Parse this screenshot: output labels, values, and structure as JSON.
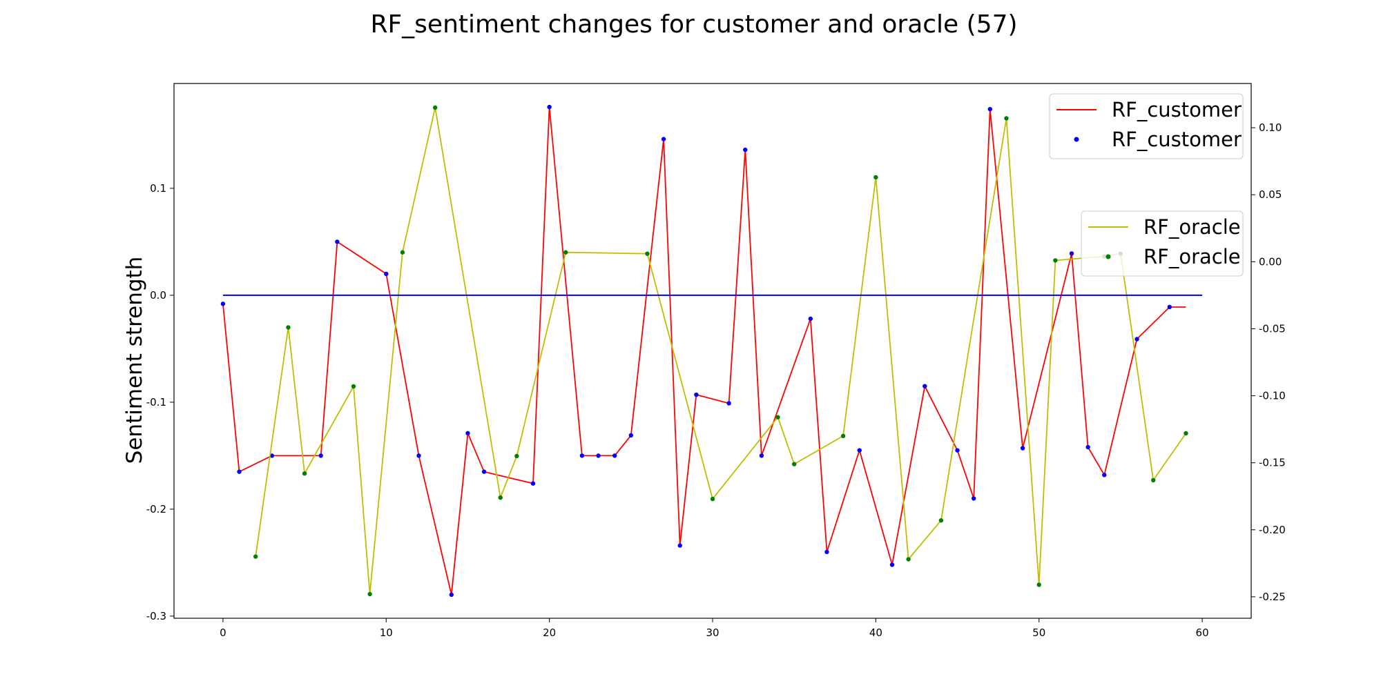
{
  "chart_data": {
    "type": "line",
    "title": "RF_sentiment changes for customer and oracle (57)",
    "ylabel": "Sentiment strength",
    "xlabel": "",
    "x_ticks": [
      0,
      10,
      20,
      30,
      40,
      50,
      60
    ],
    "xlim": [
      -3,
      63
    ],
    "left_axis": {
      "ylim": [
        -0.302,
        0.198
      ],
      "ticks": [
        -0.3,
        -0.2,
        -0.1,
        0.0,
        0.1
      ],
      "tick_labels": [
        "-0.3",
        "-0.2",
        "-0.1",
        "0.0",
        "0.1"
      ]
    },
    "right_axis": {
      "ylim": [
        -0.266,
        0.133
      ],
      "ticks": [
        -0.25,
        -0.2,
        -0.15,
        -0.1,
        -0.05,
        0.0,
        0.05,
        0.1
      ],
      "tick_labels": [
        "-0.25",
        "-0.20",
        "-0.15",
        "-0.10",
        "-0.05",
        "0.00",
        "0.05",
        "0.10"
      ]
    },
    "zero_line": {
      "x": [
        0,
        60
      ],
      "y": 0.0,
      "color": "#0000ff"
    },
    "legend_position": "upper-right",
    "series": [
      {
        "name": "RF_customer",
        "axis": "left",
        "line_color": "#ff0000",
        "marker_color": "#0000ff",
        "x": [
          0,
          1,
          3,
          6,
          7,
          10,
          12,
          14,
          15,
          16,
          19,
          20,
          22,
          23,
          24,
          25,
          27,
          28,
          29,
          31,
          32,
          33,
          36,
          37,
          39,
          41,
          43,
          45,
          46,
          47,
          49,
          52,
          53,
          54,
          56,
          58,
          59
        ],
        "y": [
          -0.008,
          -0.165,
          -0.15,
          -0.15,
          0.05,
          0.02,
          -0.15,
          -0.28,
          -0.129,
          -0.165,
          -0.176,
          0.176,
          -0.15,
          -0.15,
          -0.15,
          -0.131,
          0.146,
          -0.234,
          -0.093,
          -0.101,
          0.136,
          -0.15,
          -0.022,
          -0.24,
          -0.145,
          -0.252,
          -0.085,
          -0.145,
          -0.19,
          0.174,
          -0.143,
          0.039,
          -0.142,
          -0.168,
          -0.041,
          -0.011,
          -0.011
        ],
        "markers": [
          true,
          true,
          true,
          true,
          true,
          true,
          true,
          true,
          true,
          true,
          true,
          true,
          true,
          true,
          true,
          true,
          true,
          true,
          true,
          true,
          true,
          true,
          true,
          true,
          true,
          true,
          true,
          true,
          true,
          true,
          true,
          true,
          true,
          true,
          true,
          true,
          false
        ]
      },
      {
        "name": "RF_oracle",
        "axis": "right",
        "line_color": "#bfbf00",
        "marker_color": "#008000",
        "x": [
          2,
          4,
          5,
          8,
          9,
          11,
          13,
          17,
          18,
          21,
          26,
          30,
          34,
          35,
          38,
          40,
          42,
          44,
          48,
          50,
          51,
          54,
          55,
          57,
          59
        ],
        "y": [
          -0.22,
          -0.049,
          -0.158,
          -0.093,
          -0.248,
          0.007,
          0.115,
          -0.176,
          -0.145,
          0.007,
          0.006,
          -0.177,
          -0.116,
          -0.151,
          -0.13,
          0.063,
          -0.222,
          -0.193,
          0.107,
          -0.241,
          0.001,
          0.004,
          0.006,
          -0.163,
          -0.128
        ]
      }
    ],
    "legends": [
      {
        "entries": [
          {
            "label": "RF_customer",
            "kind": "line",
            "color": "#ff0000"
          },
          {
            "label": "RF_customer",
            "kind": "marker",
            "color": "#0000ff"
          }
        ]
      },
      {
        "entries": [
          {
            "label": "RF_oracle",
            "kind": "line",
            "color": "#bfbf00"
          },
          {
            "label": "RF_oracle",
            "kind": "marker",
            "color": "#008000"
          }
        ]
      }
    ]
  }
}
